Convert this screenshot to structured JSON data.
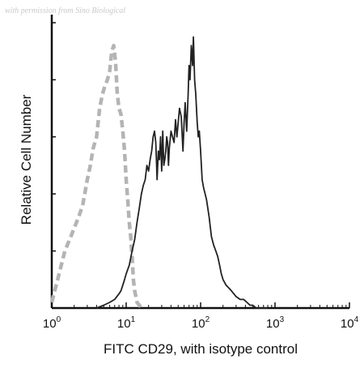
{
  "watermark": "with permission from Sino Biological",
  "chart_data": {
    "type": "line",
    "title": "",
    "xlabel": "FITC CD29, with isotype control",
    "ylabel": "Relative Cell Number",
    "xscale": "log",
    "xlim": [
      1,
      10000
    ],
    "ylim": [
      0,
      100
    ],
    "grid": false,
    "legend": "none",
    "x_ticks": [
      {
        "base": "10",
        "exp": "0",
        "value": 1
      },
      {
        "base": "10",
        "exp": "1",
        "value": 10
      },
      {
        "base": "10",
        "exp": "2",
        "value": 100
      },
      {
        "base": "10",
        "exp": "3",
        "value": 1000
      },
      {
        "base": "10",
        "exp": "4",
        "value": 10000
      }
    ],
    "series": [
      {
        "style": "dashed",
        "color": "#b4b4b4",
        "x": [
          1.0,
          1.2,
          1.5,
          1.8,
          2.0,
          2.3,
          2.6,
          3.0,
          3.3,
          3.6,
          4.0,
          4.4,
          4.8,
          5.2,
          5.6,
          6.0,
          6.4,
          6.8,
          7.2,
          7.6,
          8.0,
          8.5,
          9.0,
          9.5,
          10.0,
          10.5,
          11.0,
          11.5,
          12.0,
          12.5,
          13.0,
          13.5,
          14.0,
          15.0,
          16.0
        ],
        "y": [
          2,
          10,
          20,
          25,
          28,
          32,
          36,
          45,
          50,
          56,
          60,
          70,
          75,
          78,
          80,
          83,
          90,
          92,
          86,
          75,
          70,
          68,
          62,
          55,
          45,
          38,
          30,
          25,
          18,
          10,
          6,
          4,
          2,
          1,
          0
        ]
      },
      {
        "style": "solid",
        "color": "#222222",
        "x": [
          4,
          5,
          6,
          7,
          8,
          8.5,
          9,
          9.5,
          10,
          11,
          12,
          13,
          14,
          15,
          16,
          17,
          18,
          19,
          20,
          21,
          22,
          23,
          24,
          25,
          26,
          27,
          28,
          29,
          30,
          31,
          32,
          33,
          34,
          35,
          36,
          37,
          38,
          40,
          42,
          44,
          46,
          48,
          50,
          52,
          55,
          58,
          60,
          62,
          65,
          68,
          70,
          72,
          75,
          78,
          80,
          83,
          86,
          88,
          90,
          93,
          96,
          100,
          105,
          110,
          115,
          120,
          125,
          130,
          140,
          150,
          160,
          170,
          180,
          190,
          200,
          220,
          240,
          260,
          280,
          300,
          340,
          380,
          420,
          460,
          500,
          560,
          620,
          700,
          800
        ],
        "y": [
          0,
          1,
          2,
          3,
          5,
          6,
          8,
          10,
          12,
          15,
          20,
          24,
          30,
          35,
          40,
          43,
          45,
          50,
          48,
          52,
          55,
          60,
          62,
          58,
          45,
          55,
          52,
          60,
          48,
          62,
          50,
          52,
          55,
          60,
          58,
          50,
          56,
          62,
          60,
          58,
          66,
          60,
          65,
          70,
          67,
          55,
          65,
          72,
          62,
          75,
          85,
          80,
          92,
          85,
          95,
          80,
          75,
          70,
          65,
          60,
          62,
          55,
          45,
          42,
          40,
          38,
          35,
          32,
          25,
          22,
          20,
          18,
          15,
          12,
          10,
          8,
          7,
          6,
          5,
          4,
          3,
          3,
          2,
          1,
          1,
          0,
          0,
          0,
          0
        ]
      }
    ]
  }
}
